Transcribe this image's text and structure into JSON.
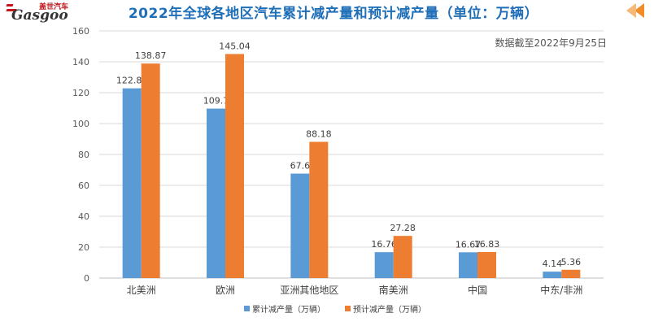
{
  "header": {
    "logo_cn": "盖世汽车",
    "logo_en": "Gasgoo"
  },
  "colors": {
    "series_cumulative": "#5b9bd5",
    "series_projected": "#ed7d31",
    "title": "#1f6fb8",
    "logo_red": "#c2161b",
    "nav_arrow": "#f28c28"
  },
  "icons": [
    "logo-icon",
    "double-chevron-left-icon"
  ],
  "chart_data": {
    "type": "bar",
    "title": "2022年全球各地区汽车累计减产量和预计减产量（单位：万辆）",
    "annotation": "数据截至2022年9月25日",
    "categories": [
      "北美洲",
      "欧洲",
      "亚洲其他地区",
      "南美洲",
      "中国",
      "中东/非洲"
    ],
    "series": [
      {
        "name": "累计减产量（万辆）",
        "values": [
          122.82,
          109.7,
          67.6,
          16.76,
          16.67,
          4.14
        ]
      },
      {
        "name": "预计减产量（万辆）",
        "values": [
          138.87,
          145.04,
          88.18,
          27.28,
          16.83,
          5.36
        ]
      }
    ],
    "value_labels": [
      [
        "122.82",
        "109.7",
        "67.6",
        "16.76",
        "16.67",
        "4.14"
      ],
      [
        "138.87",
        "145.04",
        "88.18",
        "27.28",
        "16.83",
        "5.36"
      ]
    ],
    "ylim": [
      0,
      160
    ],
    "yticks": [
      0,
      20,
      40,
      60,
      80,
      100,
      120,
      140,
      160
    ],
    "xlabel": "",
    "ylabel": "",
    "grid": true,
    "legend_position": "bottom"
  }
}
